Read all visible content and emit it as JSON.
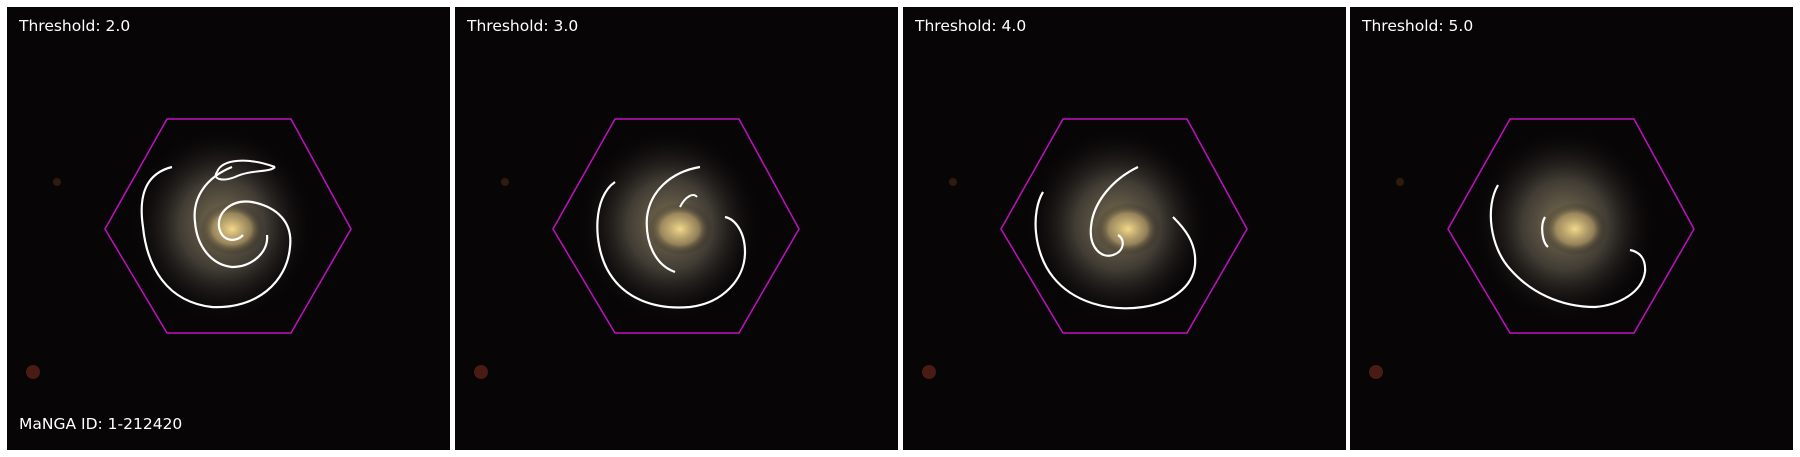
{
  "panels": [
    {
      "label": "Threshold: 2.0"
    },
    {
      "label": "Threshold: 3.0"
    },
    {
      "label": "Threshold: 4.0"
    },
    {
      "label": "Threshold: 5.0"
    }
  ],
  "manga_id_label": "MaNGA ID: 1-212420",
  "colors": {
    "background": "#000000",
    "hexagon": "#c010c0",
    "contour": "#ffffff",
    "core": "#e8c877",
    "separator": "#ffffff"
  }
}
